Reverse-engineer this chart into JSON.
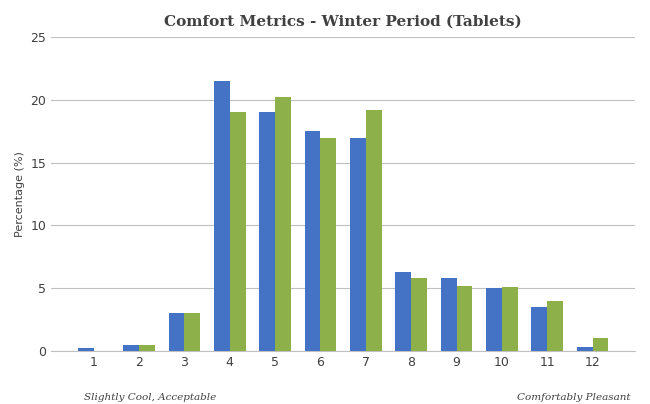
{
  "title": "Comfort Metrics - Winter Period (Tablets)",
  "categories": [
    1,
    2,
    3,
    4,
    5,
    6,
    7,
    8,
    9,
    10,
    11,
    12
  ],
  "blue_values": [
    0.2,
    0.5,
    3.0,
    21.5,
    19.0,
    17.5,
    17.0,
    6.3,
    5.8,
    5.0,
    3.5,
    0.3
  ],
  "green_values": [
    0.0,
    0.5,
    3.0,
    19.0,
    20.2,
    17.0,
    19.2,
    5.8,
    5.2,
    5.1,
    4.0,
    1.0
  ],
  "blue_color": "#4472C4",
  "green_color": "#8DB04B",
  "ylabel": "Percentage (%)",
  "xlabel_left": "Slightly Cool, Acceptable",
  "xlabel_right": "Comfortably Pleasant",
  "ylim": [
    0,
    25
  ],
  "yticks": [
    0,
    5,
    10,
    15,
    20,
    25
  ],
  "background_color": "#FFFFFF",
  "plot_bg_color": "#FFFFFF",
  "title_color": "#404040",
  "tick_color": "#404040",
  "label_color": "#404040",
  "grid_color": "#C0C0C0",
  "bar_width": 0.35
}
